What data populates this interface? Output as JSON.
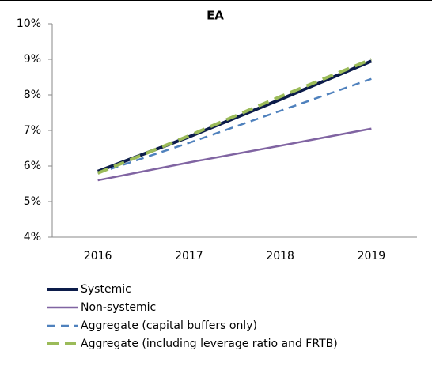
{
  "chart_data": {
    "type": "line",
    "title": "EA",
    "categories": [
      "2016",
      "2017",
      "2018",
      "2019"
    ],
    "series": [
      {
        "name": "Systemic",
        "color": "#0c1c4a",
        "dash": "solid",
        "values": [
          5.85,
          6.82,
          7.87,
          8.95
        ]
      },
      {
        "name": "Non-systemic",
        "color": "#8064a2",
        "dash": "solid",
        "values": [
          5.6,
          6.1,
          6.57,
          7.05
        ]
      },
      {
        "name": "Aggregate (capital buffers only)",
        "color": "#4f81bd",
        "dash": "dashed",
        "values": [
          5.8,
          6.65,
          7.55,
          8.45
        ]
      },
      {
        "name": "Aggregate (including leverage ratio and FRTB)",
        "color": "#9bbb59",
        "dash": "dashed",
        "values": [
          5.8,
          6.85,
          7.95,
          9.0
        ]
      }
    ],
    "ylim": [
      4,
      10
    ],
    "yticks": [
      {
        "value": 4,
        "label": "4%"
      },
      {
        "value": 5,
        "label": "5%"
      },
      {
        "value": 6,
        "label": "6%"
      },
      {
        "value": 7,
        "label": "7%"
      },
      {
        "value": 8,
        "label": "8%"
      },
      {
        "value": 9,
        "label": "9%"
      },
      {
        "value": 10,
        "label": "10%"
      }
    ],
    "grid": false
  }
}
